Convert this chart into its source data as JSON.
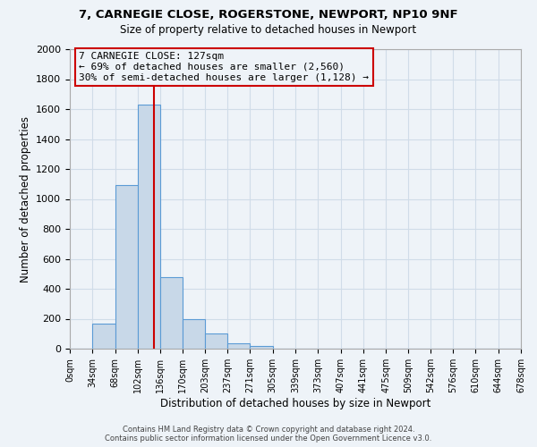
{
  "title": "7, CARNEGIE CLOSE, ROGERSTONE, NEWPORT, NP10 9NF",
  "subtitle": "Size of property relative to detached houses in Newport",
  "xlabel": "Distribution of detached houses by size in Newport",
  "ylabel": "Number of detached properties",
  "bin_edges": [
    0,
    34,
    68,
    102,
    136,
    170,
    203,
    237,
    271,
    305,
    339,
    373,
    407,
    441,
    475,
    509,
    542,
    576,
    610,
    644,
    678
  ],
  "bin_counts": [
    0,
    165,
    1090,
    1630,
    480,
    200,
    100,
    35,
    20,
    0,
    0,
    0,
    0,
    0,
    0,
    0,
    0,
    0,
    0,
    0
  ],
  "bar_color": "#c8d8e8",
  "bar_edge_color": "#5b9bd5",
  "property_size": 127,
  "vline_color": "#cc0000",
  "annotation_box_edge_color": "#cc0000",
  "annotation_text_line1": "7 CARNEGIE CLOSE: 127sqm",
  "annotation_text_line2": "← 69% of detached houses are smaller (2,560)",
  "annotation_text_line3": "30% of semi-detached houses are larger (1,128) →",
  "ylim": [
    0,
    2000
  ],
  "yticks": [
    0,
    200,
    400,
    600,
    800,
    1000,
    1200,
    1400,
    1600,
    1800,
    2000
  ],
  "xtick_labels": [
    "0sqm",
    "34sqm",
    "68sqm",
    "102sqm",
    "136sqm",
    "170sqm",
    "203sqm",
    "237sqm",
    "271sqm",
    "305sqm",
    "339sqm",
    "373sqm",
    "407sqm",
    "441sqm",
    "475sqm",
    "509sqm",
    "542sqm",
    "576sqm",
    "610sqm",
    "644sqm",
    "678sqm"
  ],
  "grid_color": "#d0dce8",
  "background_color": "#eef3f8",
  "footer_line1": "Contains HM Land Registry data © Crown copyright and database right 2024.",
  "footer_line2": "Contains public sector information licensed under the Open Government Licence v3.0."
}
